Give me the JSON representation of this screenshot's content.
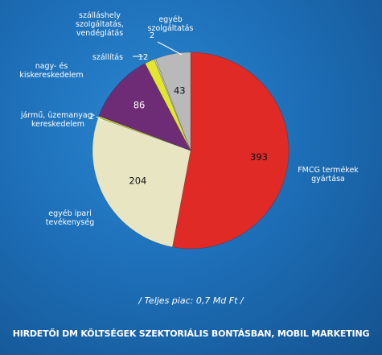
{
  "chart_data": {
    "type": "pie",
    "slices": [
      {
        "label": "FMCG termékek\ngyártása",
        "value": 393,
        "display": "393",
        "color": "#e02a26"
      },
      {
        "label": "egyéb ipari\ntevékenység",
        "value": 204,
        "display": "204",
        "color": "#e8e6c2"
      },
      {
        "label": "jármű, üzemanyag-\nkereskedelem",
        "value": 2,
        "display": "2",
        "color": "#c4d43a"
      },
      {
        "label": "nagy- és\nkiskereskedelem",
        "value": 86,
        "display": "86",
        "color": "#6e2c76"
      },
      {
        "label": "szállítás",
        "value": 12,
        "display": "12",
        "color": "#e3e62e"
      },
      {
        "label": "szálláshely\nszolgáltatás,\nvendéglátás",
        "value": 2,
        "display": "2",
        "color": "#c9c9c9"
      },
      {
        "label": "egyéb\nszolgáltatás",
        "value": 43,
        "display": "43",
        "color": "#b9b9b9"
      }
    ]
  },
  "total_note": "/ Teljes piac: 0,7 Md Ft /",
  "caption": "HIRDETŐI DM KÖLTSÉGEK SZEKTORIÁLIS BONTÁSBAN, MOBIL MARKETING",
  "colors": {
    "background": "#1d6fb8"
  }
}
